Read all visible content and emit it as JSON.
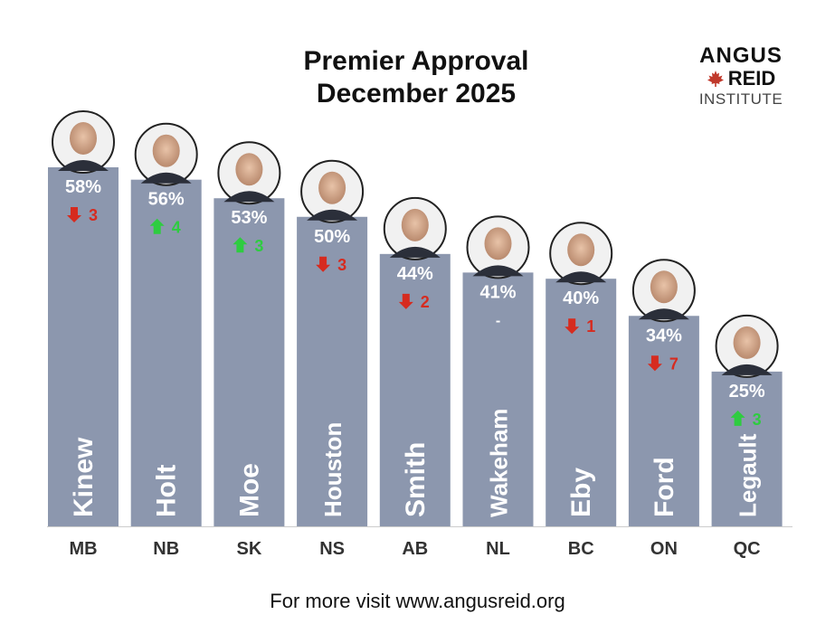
{
  "title": {
    "line1": "Premier Approval",
    "line2": "December 2025"
  },
  "logo": {
    "line1": "ANGUS",
    "line2": "REID",
    "line3": "INSTITUTE",
    "leaf_icon": "maple-leaf-icon",
    "leaf_color": "#c0392b"
  },
  "footer": "For more visit www.angusreid.org",
  "colors": {
    "bar": "#8c97ae",
    "bar_text": "#ffffff",
    "up": "#2ecc40",
    "down": "#d62b1f",
    "axis": "#cccccc"
  },
  "chart_data": {
    "type": "bar",
    "title": "Premier Approval December 2025",
    "categories": [
      "MB",
      "NB",
      "SK",
      "NS",
      "AB",
      "NL",
      "BC",
      "ON",
      "QC"
    ],
    "names": [
      "Kinew",
      "Holt",
      "Moe",
      "Houston",
      "Smith",
      "Wakeham",
      "Eby",
      "Ford",
      "Legault"
    ],
    "values": [
      58,
      56,
      53,
      50,
      44,
      41,
      40,
      34,
      25
    ],
    "value_labels": [
      "58%",
      "56%",
      "53%",
      "50%",
      "44%",
      "41%",
      "40%",
      "34%",
      "25%"
    ],
    "change": [
      -3,
      4,
      3,
      -3,
      -2,
      0,
      -1,
      -7,
      3
    ],
    "change_labels": [
      "3",
      "4",
      "3",
      "3",
      "2",
      "-",
      "1",
      "7",
      "3"
    ],
    "change_direction": [
      "down",
      "up",
      "up",
      "down",
      "down",
      "none",
      "down",
      "down",
      "up"
    ],
    "ylim": [
      0,
      60
    ],
    "grid": false,
    "legend": "none"
  }
}
